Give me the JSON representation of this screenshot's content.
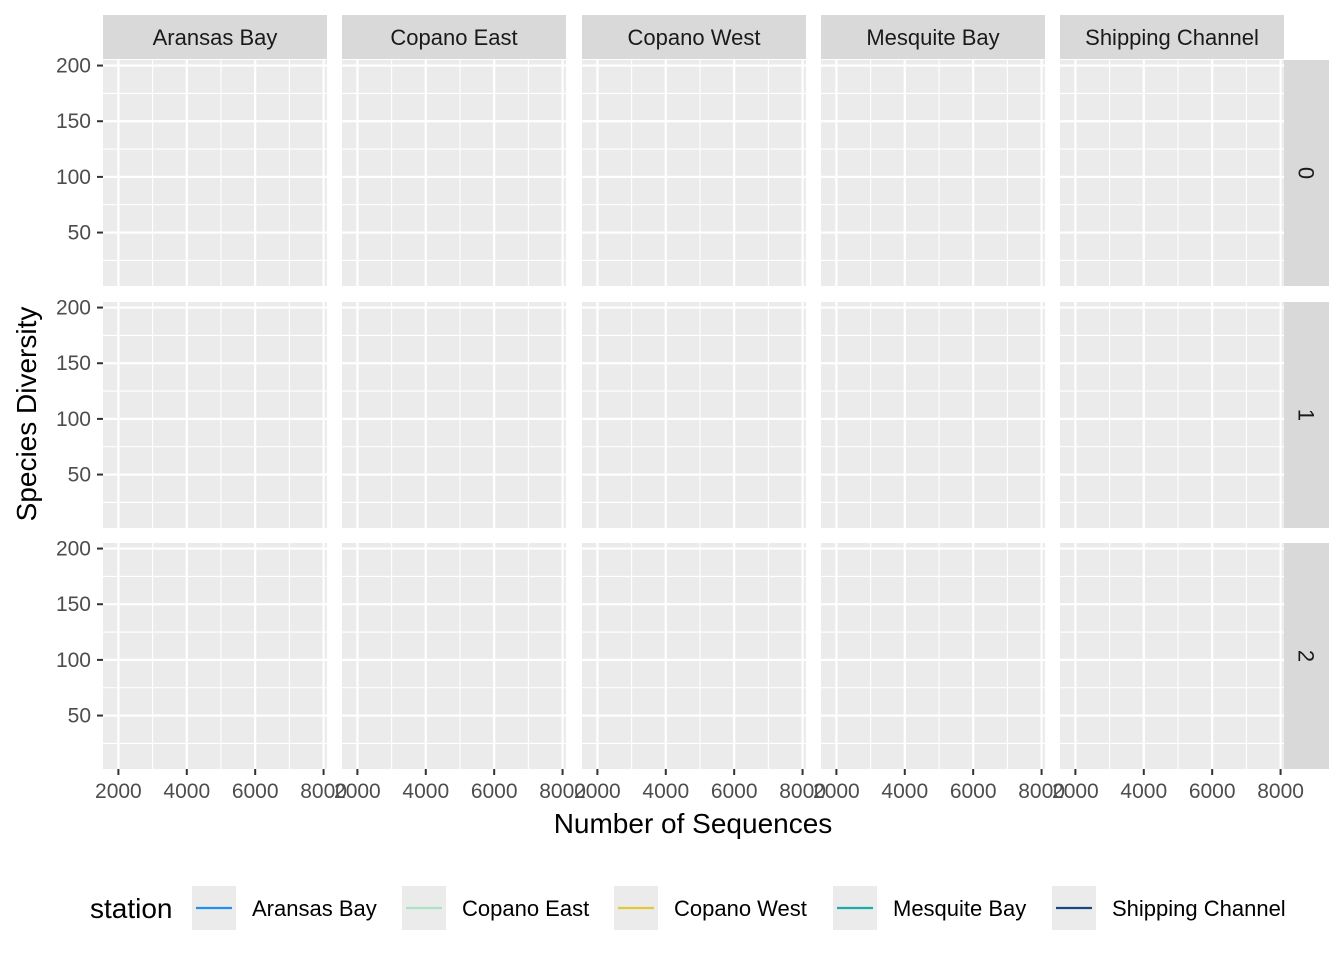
{
  "chart_data": {
    "type": "line",
    "title": "",
    "xlabel": "Number of Sequences",
    "ylabel": "Species Diversity",
    "xlim": [
      1550,
      8100
    ],
    "ylim": [
      2,
      205
    ],
    "x_ticks": [
      2000,
      4000,
      6000,
      8000
    ],
    "x_tick_labels": [
      "2000",
      "4000",
      "6000",
      "8000"
    ],
    "y_ticks": [
      50,
      100,
      150,
      200
    ],
    "y_tick_labels": [
      "50",
      "100",
      "150",
      "200"
    ],
    "facet_columns": [
      "Aransas Bay",
      "Copano East",
      "Copano West",
      "Mesquite Bay",
      "Shipping Channel"
    ],
    "facet_rows": [
      "0",
      "1",
      "2"
    ],
    "series": [
      {
        "name": "Aransas Bay",
        "color": "#1f8ff0",
        "values": []
      },
      {
        "name": "Copano East",
        "color": "#a8e3c6",
        "values": []
      },
      {
        "name": "Copano West",
        "color": "#e3c93a",
        "values": []
      },
      {
        "name": "Mesquite Bay",
        "color": "#17ada8",
        "values": []
      },
      {
        "name": "Shipping Channel",
        "color": "#134b80",
        "values": []
      }
    ],
    "legend": {
      "title": "station",
      "position": "bottom"
    },
    "grid": true
  }
}
